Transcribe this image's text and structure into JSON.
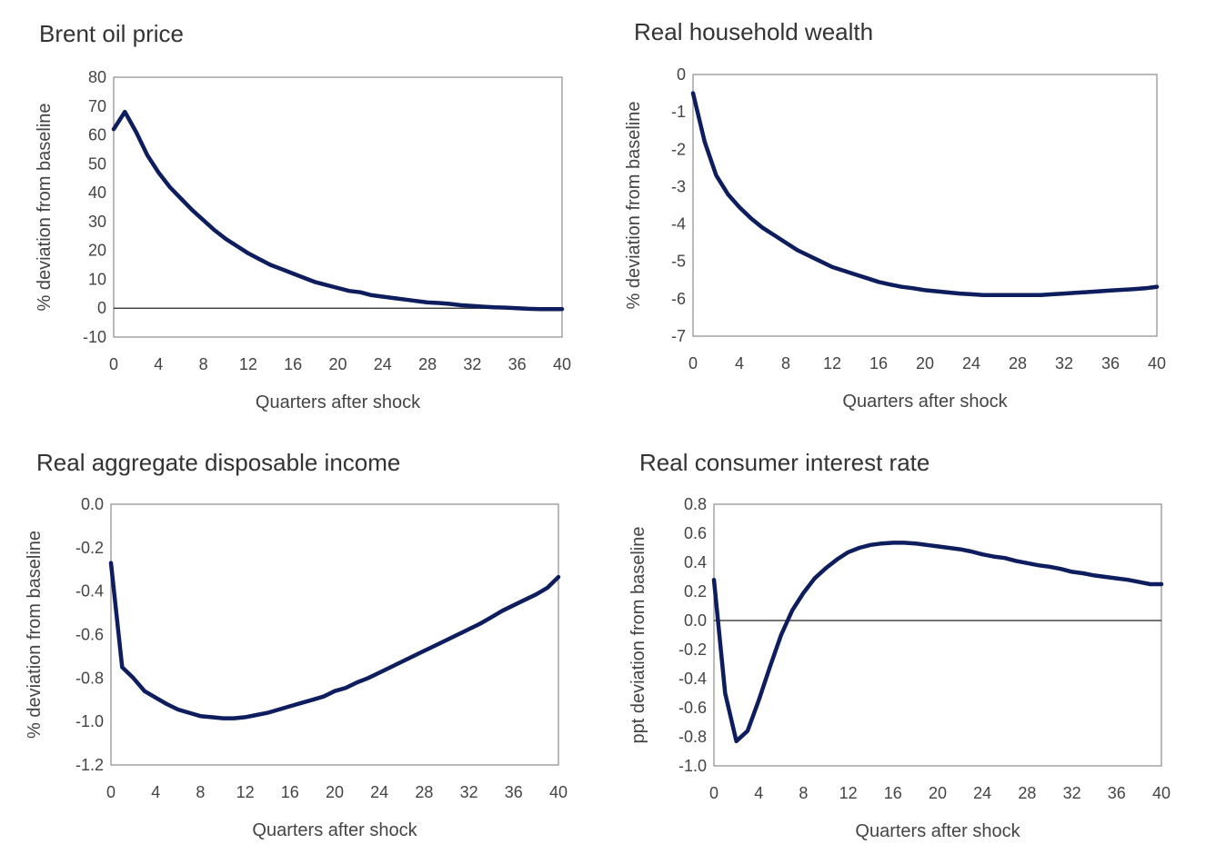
{
  "chart_data": [
    {
      "type": "line",
      "title": "Brent oil price",
      "xlabel": "Quarters after shock",
      "ylabel": "% deviation from baseline",
      "xlim": [
        0,
        40
      ],
      "ylim": [
        -10,
        80
      ],
      "xticks": [
        0,
        4,
        8,
        12,
        16,
        20,
        24,
        28,
        32,
        36,
        40
      ],
      "yticks": [
        80,
        70,
        60,
        50,
        40,
        30,
        20,
        10,
        0,
        -10
      ],
      "ytick_labels": [
        "80",
        "70",
        "60",
        "50",
        "40",
        "30",
        "20",
        "10",
        "0",
        "-10"
      ],
      "zero_line": true,
      "x": [
        0,
        1,
        2,
        3,
        4,
        5,
        6,
        7,
        8,
        9,
        10,
        11,
        12,
        13,
        14,
        15,
        16,
        17,
        18,
        19,
        20,
        21,
        22,
        23,
        24,
        25,
        26,
        27,
        28,
        29,
        30,
        31,
        32,
        33,
        34,
        35,
        36,
        37,
        38,
        39,
        40
      ],
      "values": [
        62,
        68,
        61,
        53,
        47,
        42,
        38,
        34,
        30.5,
        27,
        24,
        21.5,
        19,
        17,
        15,
        13.5,
        12,
        10.5,
        9,
        8,
        7,
        6,
        5.5,
        4.5,
        4,
        3.5,
        3,
        2.5,
        2,
        1.8,
        1.5,
        1,
        0.8,
        0.5,
        0.3,
        0.2,
        0,
        -0.2,
        -0.3,
        -0.3,
        -0.3
      ]
    },
    {
      "type": "line",
      "title": "Real household wealth",
      "xlabel": "Quarters after shock",
      "ylabel": "% deviation from baseline",
      "xlim": [
        0,
        40
      ],
      "ylim": [
        -7,
        0
      ],
      "xticks": [
        0,
        4,
        8,
        12,
        16,
        20,
        24,
        28,
        32,
        36,
        40
      ],
      "yticks": [
        0,
        -1,
        -2,
        -3,
        -4,
        -5,
        -6,
        -7
      ],
      "ytick_labels": [
        "0",
        "-1",
        "-2",
        "-3",
        "-4",
        "-5",
        "-6",
        "-7"
      ],
      "zero_line": false,
      "x": [
        0,
        1,
        2,
        3,
        4,
        5,
        6,
        7,
        8,
        9,
        10,
        11,
        12,
        13,
        14,
        15,
        16,
        17,
        18,
        19,
        20,
        21,
        22,
        23,
        24,
        25,
        26,
        27,
        28,
        29,
        30,
        31,
        32,
        33,
        34,
        35,
        36,
        37,
        38,
        39,
        40
      ],
      "values": [
        -0.5,
        -1.8,
        -2.7,
        -3.2,
        -3.55,
        -3.85,
        -4.1,
        -4.3,
        -4.5,
        -4.7,
        -4.85,
        -5.0,
        -5.15,
        -5.25,
        -5.35,
        -5.45,
        -5.55,
        -5.62,
        -5.68,
        -5.72,
        -5.77,
        -5.8,
        -5.83,
        -5.86,
        -5.88,
        -5.9,
        -5.9,
        -5.9,
        -5.9,
        -5.9,
        -5.9,
        -5.88,
        -5.86,
        -5.84,
        -5.82,
        -5.8,
        -5.78,
        -5.76,
        -5.74,
        -5.72,
        -5.68
      ]
    },
    {
      "type": "line",
      "title": "Real aggregate disposable income",
      "xlabel": "Quarters after shock",
      "ylabel": "% deviation from baseline",
      "xlim": [
        0,
        40
      ],
      "ylim": [
        -1.2,
        0
      ],
      "xticks": [
        0,
        4,
        8,
        12,
        16,
        20,
        24,
        28,
        32,
        36,
        40
      ],
      "yticks": [
        0,
        -0.2,
        -0.4,
        -0.6,
        -0.8,
        -1.0,
        -1.2
      ],
      "ytick_labels": [
        "0.0",
        "-0.2",
        "-0.4",
        "-0.6",
        "-0.8",
        "-1.0",
        "-1.2"
      ],
      "zero_line": false,
      "x": [
        0,
        1,
        2,
        3,
        4,
        5,
        6,
        7,
        8,
        9,
        10,
        11,
        12,
        13,
        14,
        15,
        16,
        17,
        18,
        19,
        20,
        21,
        22,
        23,
        24,
        25,
        26,
        27,
        28,
        29,
        30,
        31,
        32,
        33,
        34,
        35,
        36,
        37,
        38,
        39,
        40
      ],
      "values": [
        -0.27,
        -0.75,
        -0.8,
        -0.86,
        -0.89,
        -0.92,
        -0.945,
        -0.96,
        -0.975,
        -0.98,
        -0.985,
        -0.985,
        -0.98,
        -0.97,
        -0.96,
        -0.945,
        -0.93,
        -0.915,
        -0.9,
        -0.885,
        -0.86,
        -0.845,
        -0.82,
        -0.8,
        -0.775,
        -0.75,
        -0.725,
        -0.7,
        -0.675,
        -0.65,
        -0.625,
        -0.6,
        -0.575,
        -0.55,
        -0.52,
        -0.49,
        -0.465,
        -0.44,
        -0.415,
        -0.385,
        -0.335
      ]
    },
    {
      "type": "line",
      "title": "Real consumer interest rate",
      "xlabel": "Quarters after shock",
      "ylabel": "ppt deviation from baseline",
      "xlim": [
        0,
        40
      ],
      "ylim": [
        -1.0,
        0.8
      ],
      "xticks": [
        0,
        4,
        8,
        12,
        16,
        20,
        24,
        28,
        32,
        36,
        40
      ],
      "yticks": [
        0.8,
        0.6,
        0.4,
        0.2,
        0,
        -0.2,
        -0.4,
        -0.6,
        -0.8,
        -1.0
      ],
      "ytick_labels": [
        "0.8",
        "0.6",
        "0.4",
        "0.2",
        "0.0",
        "-0.2",
        "-0.4",
        "-0.6",
        "-0.8",
        "-1.0"
      ],
      "zero_line": true,
      "x": [
        0,
        1,
        2,
        3,
        4,
        5,
        6,
        7,
        8,
        9,
        10,
        11,
        12,
        13,
        14,
        15,
        16,
        17,
        18,
        19,
        20,
        21,
        22,
        23,
        24,
        25,
        26,
        27,
        28,
        29,
        30,
        31,
        32,
        33,
        34,
        35,
        36,
        37,
        38,
        39,
        40
      ],
      "values": [
        0.28,
        -0.5,
        -0.83,
        -0.76,
        -0.55,
        -0.32,
        -0.1,
        0.07,
        0.19,
        0.29,
        0.36,
        0.42,
        0.47,
        0.5,
        0.52,
        0.53,
        0.535,
        0.535,
        0.53,
        0.52,
        0.51,
        0.5,
        0.49,
        0.475,
        0.455,
        0.44,
        0.43,
        0.41,
        0.395,
        0.38,
        0.37,
        0.355,
        0.335,
        0.325,
        0.31,
        0.3,
        0.29,
        0.28,
        0.265,
        0.25,
        0.25
      ]
    }
  ],
  "colors": {
    "line": "#0d1d5e",
    "frame": "#8c8c8c",
    "zero": "#222222"
  }
}
